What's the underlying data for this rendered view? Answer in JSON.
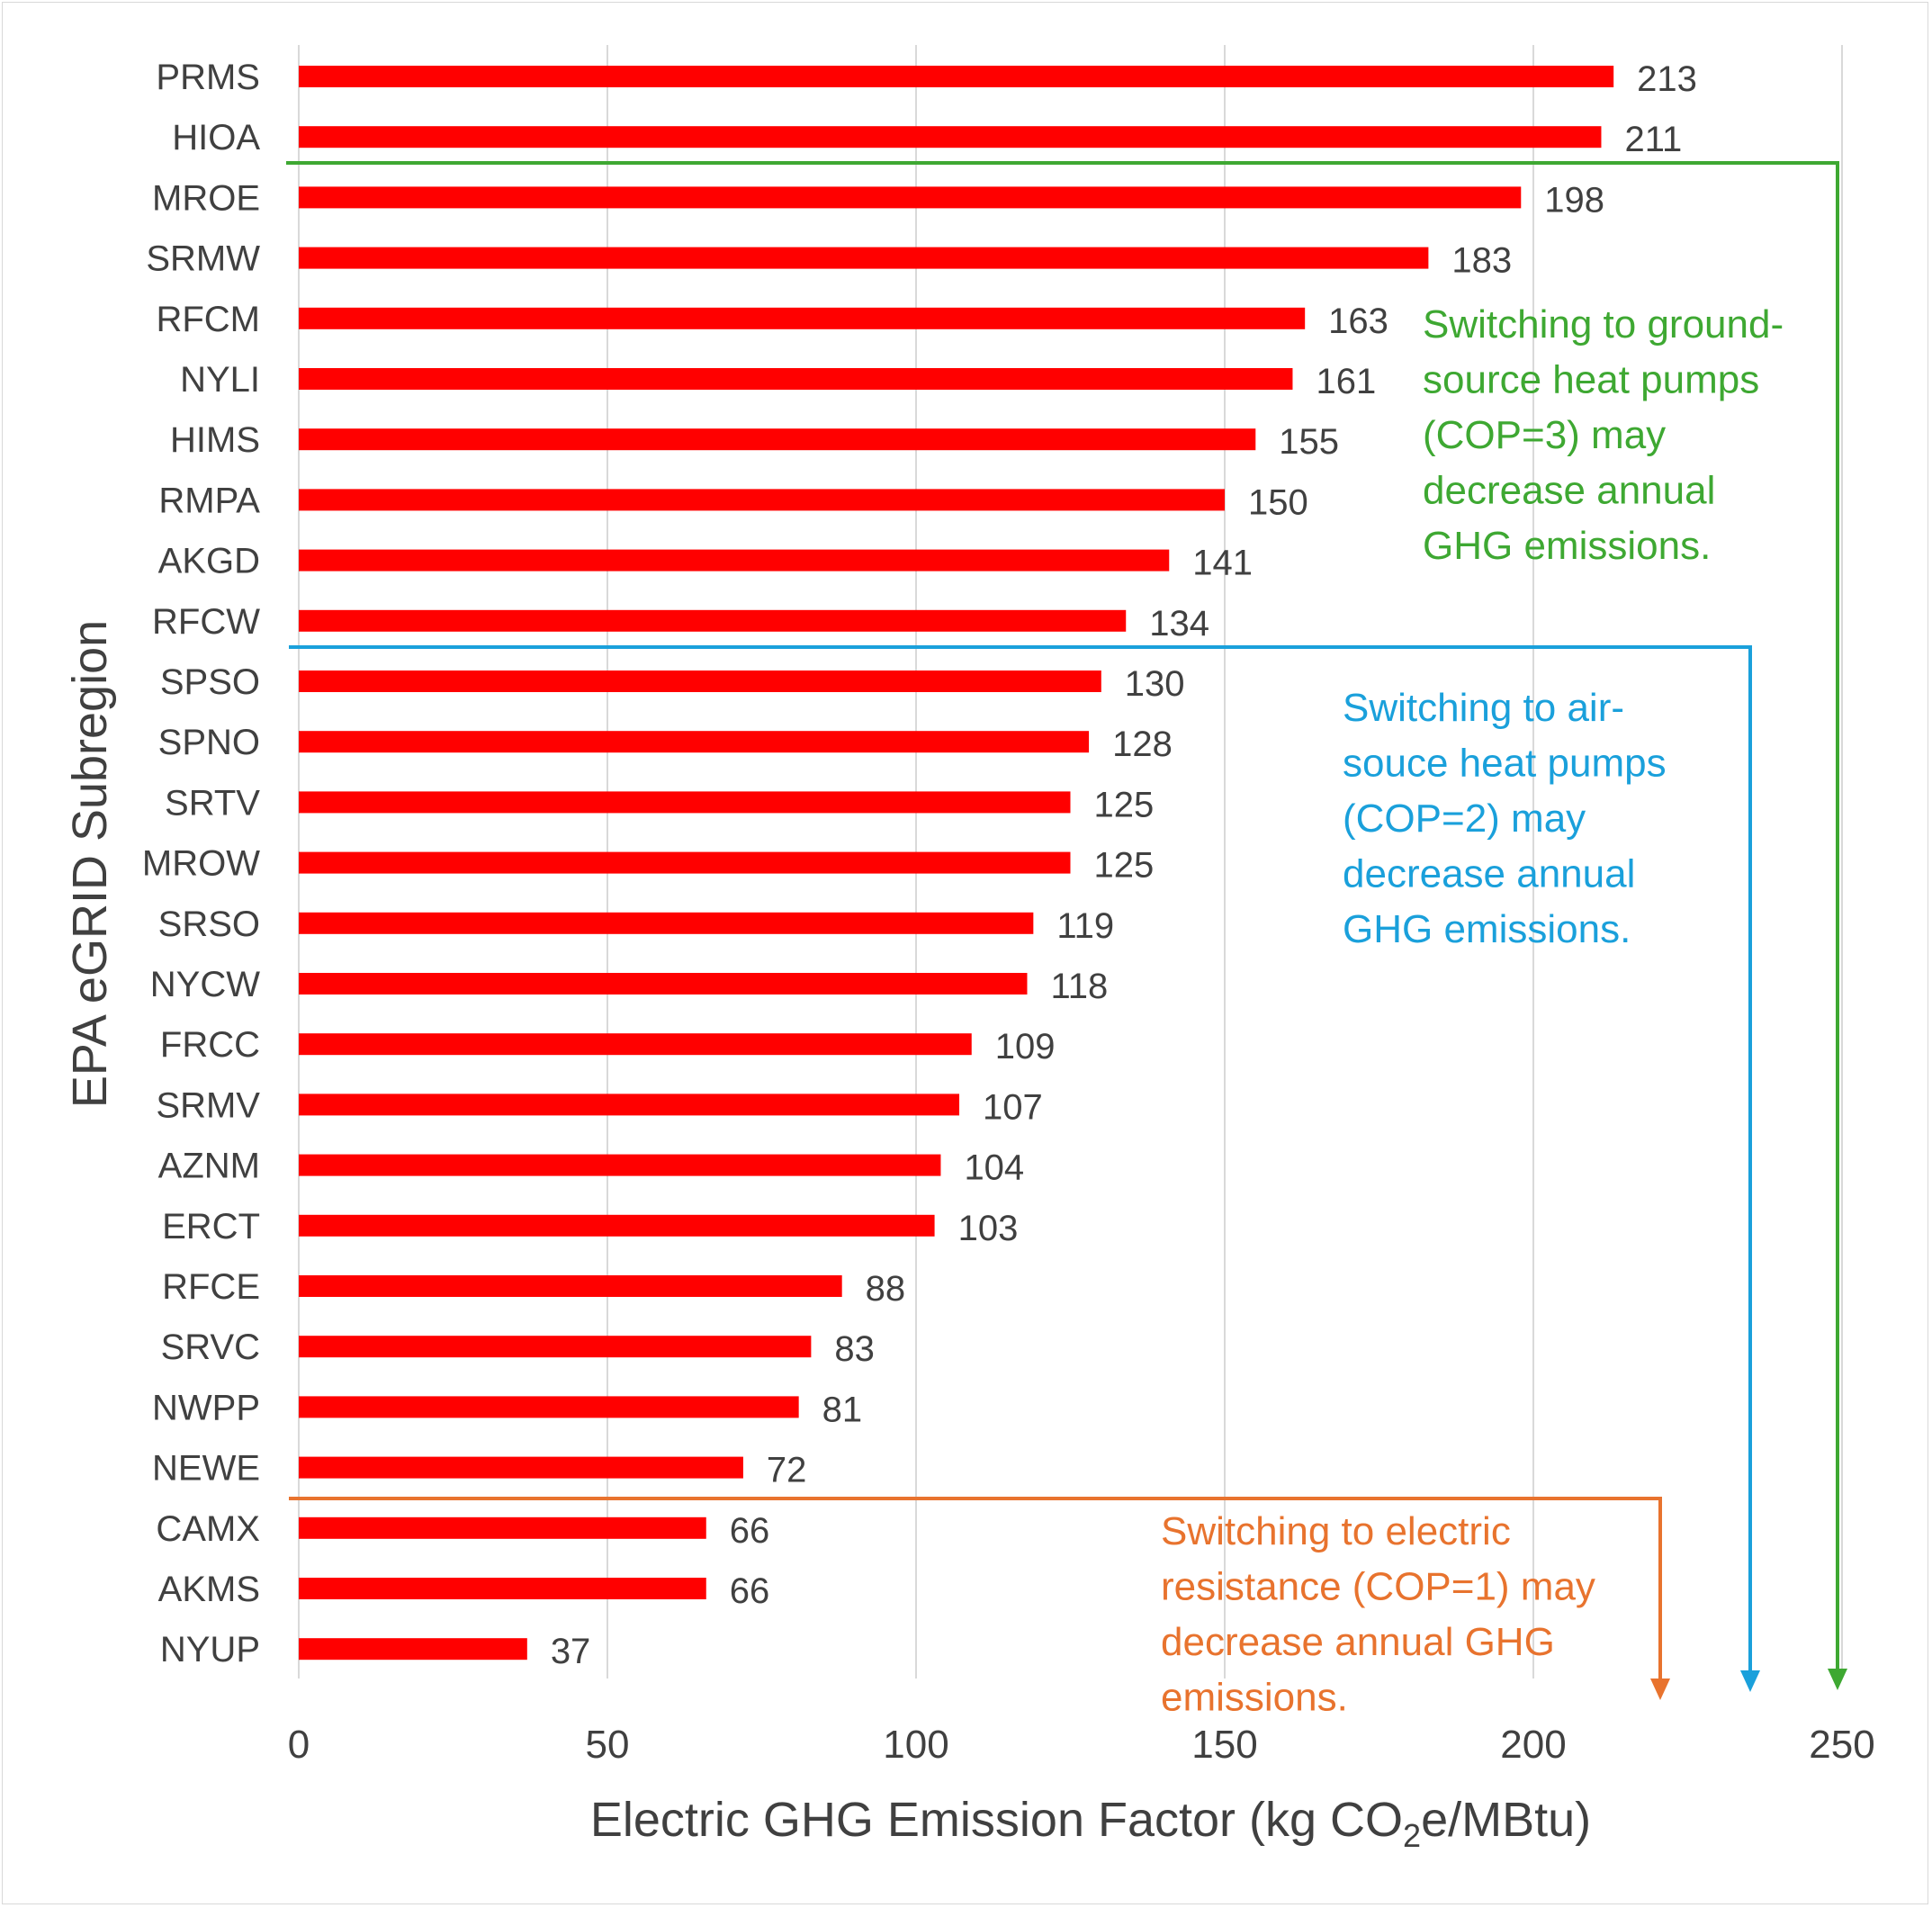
{
  "chart_data": {
    "type": "bar",
    "orientation": "horizontal",
    "categories": [
      "PRMS",
      "HIOA",
      "MROE",
      "SRMW",
      "RFCM",
      "NYLI",
      "HIMS",
      "RMPA",
      "AKGD",
      "RFCW",
      "SPSO",
      "SPNO",
      "SRTV",
      "MROW",
      "SRSO",
      "NYCW",
      "FRCC",
      "SRMV",
      "AZNM",
      "ERCT",
      "RFCE",
      "SRVC",
      "NWPP",
      "NEWE",
      "CAMX",
      "AKMS",
      "NYUP"
    ],
    "values": [
      213,
      211,
      198,
      183,
      163,
      161,
      155,
      150,
      141,
      134,
      130,
      128,
      125,
      125,
      119,
      118,
      109,
      107,
      104,
      103,
      88,
      83,
      81,
      72,
      66,
      66,
      37
    ],
    "data_labels": [
      "213",
      "211",
      "198",
      "183",
      "163",
      "161",
      "155",
      "150",
      "141",
      "134",
      "130",
      "128",
      "125",
      "125",
      "119",
      "118",
      "109",
      "107",
      "104",
      "103",
      "88",
      "83",
      "81",
      "72",
      "66",
      "66",
      "37"
    ],
    "xlim": [
      0,
      250
    ],
    "x_ticks": [
      "0",
      "50",
      "100",
      "150",
      "200",
      "250"
    ],
    "ylabel": "EPA eGRID Subregion",
    "xlabel": {
      "prefix": "Electric GHG Emission Factor (kg CO",
      "subscript": "2",
      "suffix": "e/MBtu)"
    },
    "grid": "vertical",
    "legend": "none",
    "bar_color": "#ff0000",
    "annotations": [
      {
        "id": "ground-source",
        "color": "#3ea832",
        "lines": [
          "Switching to ground-",
          "source heat pumps",
          "(COP=3) may",
          "decrease annual",
          "GHG emissions."
        ]
      },
      {
        "id": "air-source",
        "color": "#1aa0db",
        "lines": [
          "Switching to air-",
          "souce heat pumps",
          "(COP=2) may",
          "decrease annual",
          "GHG emissions."
        ]
      },
      {
        "id": "electric-resistance",
        "color": "#e8732e",
        "lines": [
          "Switching to electric",
          "resistance (COP=1) may",
          "decrease annual GHG",
          "emissions."
        ]
      }
    ]
  }
}
